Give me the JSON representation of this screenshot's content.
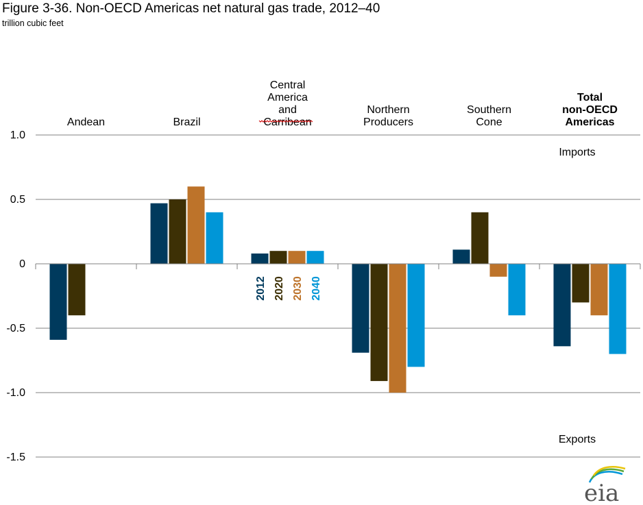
{
  "chart_data": {
    "type": "bar",
    "title": "Figure 3-36. Non-OECD Americas net natural gas trade, 2012–40",
    "subtitle": "trillion cubic feet",
    "categories": [
      {
        "lines": [
          "Andean"
        ],
        "bold": false
      },
      {
        "lines": [
          "Brazil"
        ],
        "bold": false
      },
      {
        "lines": [
          "Central",
          "America",
          "and",
          "Carribean"
        ],
        "bold": false
      },
      {
        "lines": [
          "Northern",
          "Producers"
        ],
        "bold": false
      },
      {
        "lines": [
          "Southern",
          "Cone"
        ],
        "bold": false
      },
      {
        "lines": [
          "Total",
          "non-OECD",
          "Americas"
        ],
        "bold": true
      }
    ],
    "series": [
      {
        "name": "2012",
        "color": "#003a5d",
        "values": [
          -0.59,
          0.47,
          0.08,
          -0.69,
          0.11,
          -0.64
        ]
      },
      {
        "name": "2020",
        "color": "#3d3005",
        "values": [
          -0.4,
          0.5,
          0.1,
          -0.91,
          0.4,
          -0.3
        ]
      },
      {
        "name": "2030",
        "color": "#bd732a",
        "values": [
          null,
          0.6,
          0.1,
          -1.0,
          -0.1,
          -0.4
        ]
      },
      {
        "name": "2040",
        "color": "#0096d7",
        "values": [
          null,
          0.4,
          0.1,
          -0.8,
          -0.4,
          -0.7
        ]
      }
    ],
    "y_ticks": [
      {
        "value": 1.0,
        "label": "1.0"
      },
      {
        "value": 0.5,
        "label": "0.5"
      },
      {
        "value": 0,
        "label": "0"
      },
      {
        "value": -0.5,
        "label": "-0.5"
      },
      {
        "value": -1.0,
        "label": "-1.0"
      },
      {
        "value": -1.5,
        "label": "-1.5"
      }
    ],
    "ylim": [
      -1.5,
      1.0
    ],
    "grid": true,
    "legend_placement": "inline-vertical-under-central-america",
    "annotations": [
      "Imports",
      "Exports"
    ],
    "xlabel": "",
    "ylabel": ""
  },
  "logo": {
    "text": "eia"
  }
}
